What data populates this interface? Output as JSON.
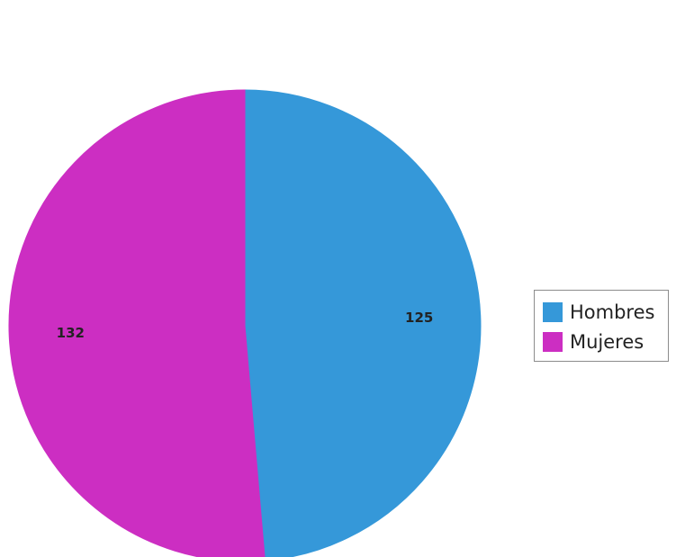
{
  "chart_data": {
    "type": "pie",
    "categories": [
      "Hombres",
      "Mujeres"
    ],
    "values": [
      125,
      132
    ],
    "colors": [
      "#3598d9",
      "#cc2ec2"
    ],
    "data_labels": [
      "125",
      "132"
    ],
    "legend": {
      "placement": "right",
      "entries": [
        "Hombres",
        "Mujeres"
      ]
    },
    "start_angle_deg": 0,
    "direction": "clockwise"
  }
}
